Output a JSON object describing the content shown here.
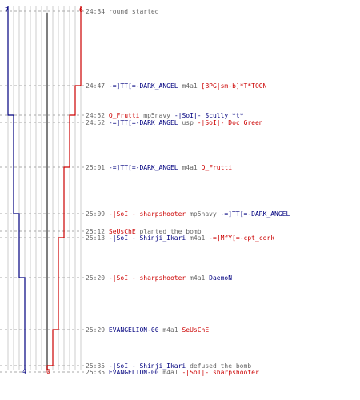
{
  "colors": {
    "team_blue": "#00007f",
    "team_red": "#cc0000",
    "grid": "#cccccc",
    "dash": "#aaaaaa",
    "text_gray": "#666666"
  },
  "start_counts": {
    "blue": "7",
    "red": "6"
  },
  "end_counts": {
    "blue": "4",
    "red": "0"
  },
  "events": [
    {
      "time": "24:34",
      "parts": [
        {
          "t": "round started",
          "c": "gray"
        }
      ]
    },
    {
      "time": "24:47",
      "parts": [
        {
          "t": "-=]TT[=-DARK_ANGEL",
          "c": "blue"
        },
        {
          "t": " m4a1 ",
          "c": "gray"
        },
        {
          "t": "[BPG|sm-b]*T*TOON",
          "c": "red"
        }
      ]
    },
    {
      "time": "24:52",
      "parts": [
        {
          "t": "Q_Frutti",
          "c": "red"
        },
        {
          "t": " mp5navy ",
          "c": "gray"
        },
        {
          "t": "-|SoI|- Scully *t*",
          "c": "blue"
        }
      ]
    },
    {
      "time": "24:52",
      "parts": [
        {
          "t": "-=]TT[=-DARK_ANGEL",
          "c": "blue"
        },
        {
          "t": " usp ",
          "c": "gray"
        },
        {
          "t": "-|SoI|- Doc Green",
          "c": "red"
        }
      ]
    },
    {
      "time": "25:01",
      "parts": [
        {
          "t": "-=]TT[=-DARK_ANGEL",
          "c": "blue"
        },
        {
          "t": " m4a1 ",
          "c": "gray"
        },
        {
          "t": "Q_Frutti",
          "c": "red"
        }
      ]
    },
    {
      "time": "25:09",
      "parts": [
        {
          "t": "-|SoI|- sharpshooter",
          "c": "red"
        },
        {
          "t": " mp5navy ",
          "c": "gray"
        },
        {
          "t": "-=]TT[=-DARK_ANGEL",
          "c": "blue"
        }
      ]
    },
    {
      "time": "25:12",
      "parts": [
        {
          "t": "SeUsChE",
          "c": "red"
        },
        {
          "t": " planted the bomb",
          "c": "gray"
        }
      ]
    },
    {
      "time": "25:13",
      "parts": [
        {
          "t": "-|SoI|- Shinji_Ikari",
          "c": "blue"
        },
        {
          "t": " m4a1 ",
          "c": "gray"
        },
        {
          "t": "-=]MfY[=-cpt_cork",
          "c": "red"
        }
      ]
    },
    {
      "time": "25:20",
      "parts": [
        {
          "t": "-|SoI|- sharpshooter",
          "c": "red"
        },
        {
          "t": " m4a1 ",
          "c": "gray"
        },
        {
          "t": "DaemoN",
          "c": "blue"
        }
      ]
    },
    {
      "time": "25:29",
      "parts": [
        {
          "t": "EVANGELION-00",
          "c": "blue"
        },
        {
          "t": " m4a1 ",
          "c": "gray"
        },
        {
          "t": "SeUsChE",
          "c": "red"
        }
      ]
    },
    {
      "time": "25:35",
      "parts": [
        {
          "t": "-|SoI|- Shinji_Ikari",
          "c": "blue"
        },
        {
          "t": " defused the bomb",
          "c": "gray"
        }
      ]
    },
    {
      "time": "25:35",
      "parts": [
        {
          "t": "EVANGELION-00",
          "c": "blue"
        },
        {
          "t": " m4a1 ",
          "c": "gray"
        },
        {
          "t": "-|SoI|- sharpshooter",
          "c": "red"
        }
      ]
    }
  ],
  "blue_steps": [
    {
      "from": "24:34",
      "count": 7
    },
    {
      "from": "24:52",
      "count": 6
    },
    {
      "from": "25:09",
      "count": 5
    },
    {
      "from": "25:20",
      "count": 4
    }
  ],
  "red_steps": [
    {
      "from": "24:34",
      "count": 6
    },
    {
      "from": "24:47",
      "count": 5
    },
    {
      "from": "24:52",
      "count": 4
    },
    {
      "from": "25:01",
      "count": 3
    },
    {
      "from": "25:13",
      "count": 2
    },
    {
      "from": "25:29",
      "count": 1
    },
    {
      "from": "25:35",
      "count": 0
    }
  ]
}
